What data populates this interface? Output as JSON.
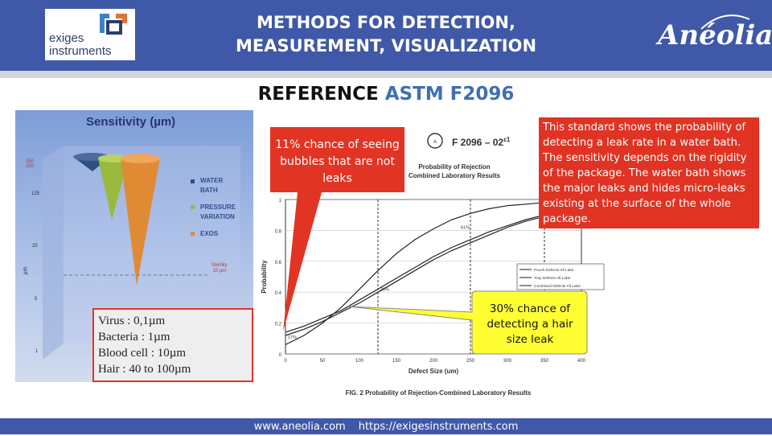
{
  "header": {
    "logo": {
      "line1": "exiges",
      "line2": "instruments"
    },
    "title_line1": "METHODS FOR DETECTION,",
    "title_line2": "MEASUREMENT, VISUALIZATION",
    "brand": "Anéolia"
  },
  "subtitle": {
    "part1": "REFERENCE ",
    "part2": "ASTM F2096"
  },
  "sensitivity_chart": {
    "title": "Sensitivity (µm)",
    "axis_label": "µm",
    "ticks": [
      "350",
      "250",
      "125",
      "25",
      "5",
      "1"
    ],
    "legend": [
      "WATER BATH",
      "PRESSURE VARIATION",
      "EXOS"
    ],
    "annotation_line1": "Sterility",
    "annotation_line2": "10 µm",
    "colors": {
      "water_bath": "#2f4f7f",
      "pressure_variation": "#9ab93f",
      "exos": "#e08a36"
    }
  },
  "sizes_box": {
    "items": [
      "Virus : 0,1µm",
      "Bacteria : 1µm",
      "Blood cell : 10µm",
      "Hair : 40 to 100µm"
    ]
  },
  "figure": {
    "standard_label": "F 2096 – 02",
    "standard_superscript": "ε1",
    "caption_line1": "Probability of Rejection",
    "caption_line2": "Combined Laboratory Results",
    "footer_caption": "FIG. 2 Probability of Rejection-Combined Laboratory Results",
    "point_labels": [
      "61%",
      "38%",
      "17%"
    ]
  },
  "chart_data": {
    "type": "line",
    "xlabel": "Defect Size (um)",
    "ylabel": "Probability",
    "xlim": [
      0,
      400
    ],
    "ylim": [
      0,
      1
    ],
    "xticks": [
      0,
      50,
      100,
      150,
      200,
      250,
      300,
      350,
      400
    ],
    "yticks": [
      0,
      0.2,
      0.4,
      0.6,
      0.8,
      1
    ],
    "reference_lines_x": [
      125,
      250,
      350
    ],
    "grid": true,
    "legend_position": "right",
    "series": [
      {
        "name": "Pouch Defects All Labs",
        "x": [
          0,
          25,
          50,
          75,
          100,
          125,
          150,
          175,
          200,
          225,
          250,
          275,
          300,
          325,
          350,
          375,
          400
        ],
        "y": [
          0.06,
          0.12,
          0.2,
          0.3,
          0.42,
          0.54,
          0.65,
          0.74,
          0.81,
          0.87,
          0.91,
          0.94,
          0.96,
          0.97,
          0.98,
          0.99,
          0.99
        ]
      },
      {
        "name": "Tray Defects All Labs",
        "x": [
          0,
          25,
          50,
          75,
          100,
          125,
          150,
          175,
          200,
          225,
          250,
          275,
          300,
          325,
          350,
          375,
          400
        ],
        "y": [
          0.14,
          0.18,
          0.23,
          0.28,
          0.35,
          0.42,
          0.49,
          0.56,
          0.63,
          0.69,
          0.74,
          0.79,
          0.83,
          0.87,
          0.9,
          0.92,
          0.94
        ]
      },
      {
        "name": "Combined Defects All Labs",
        "x": [
          0,
          25,
          50,
          75,
          100,
          125,
          150,
          175,
          200,
          225,
          250,
          275,
          300,
          325,
          350,
          375,
          400
        ],
        "y": [
          0.12,
          0.16,
          0.21,
          0.27,
          0.33,
          0.4,
          0.47,
          0.54,
          0.61,
          0.67,
          0.72,
          0.77,
          0.82,
          0.86,
          0.89,
          0.92,
          0.94
        ]
      }
    ]
  },
  "callouts": {
    "red_text": "11% chance of seeing bubbles that are not leaks",
    "yellow_text": "30% chance of detecting a hair size leak"
  },
  "info_box": {
    "text": "This standard shows the probability of detecting a leak rate in a water bath. The sensitivity depends on the rigidity of the package. The water bath shows the major leaks and hides micro-leaks existing at the surface of the whole package."
  },
  "footer": {
    "site1": "www.aneolia.com",
    "site2": "https://exigesinstruments.com"
  }
}
